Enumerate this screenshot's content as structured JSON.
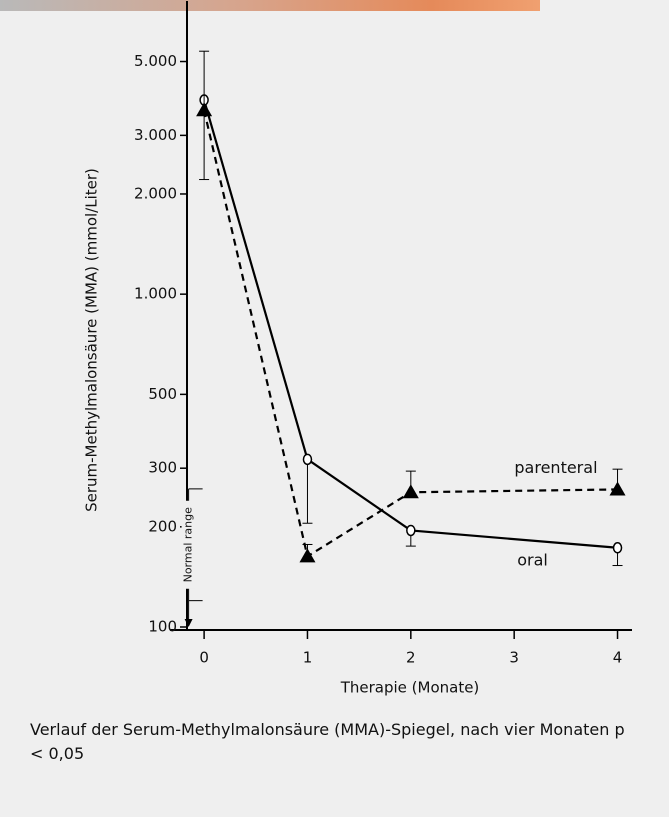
{
  "chart_data": {
    "type": "line",
    "y_label": "Serum-Methylmalonsäure (MMA) (mmol/Liter)",
    "x_label": "Therapie (Monate)",
    "caption": "Verlauf der Serum-Methylmalonsäure (MMA)-Spiegel, nach vier Monaten p < 0,05",
    "normal_range": {
      "label": "Normal range",
      "x": -0.15,
      "values": [
        120,
        260
      ]
    },
    "xlim": [
      -0.33,
      4.14
    ],
    "xticks": [
      0,
      1,
      2,
      3,
      4
    ],
    "ylim": [
      100,
      7600
    ],
    "log_y": true,
    "yticks": [
      100,
      200,
      300,
      500,
      {
        "value": 1000,
        "label": "1.000"
      },
      {
        "value": 2000,
        "label": "2.000"
      },
      {
        "value": 3000,
        "label": "3.000"
      },
      {
        "value": 5000,
        "label": "5.000"
      }
    ],
    "series": [
      {
        "name": "oral",
        "color": "#000000",
        "line": "solid",
        "marker": "circle",
        "error_direction": "down",
        "x": [
          0,
          1,
          2,
          4
        ],
        "values": [
          3830,
          319,
          195,
          173
        ],
        "errors": [
          1620,
          114,
          20,
          20
        ]
      },
      {
        "name": "parenteral",
        "color": "#000000",
        "line": "dashed",
        "marker": "triangle",
        "error_direction": "up",
        "x": [
          0,
          1,
          2,
          4
        ],
        "values": [
          3570,
          163,
          254,
          259
        ],
        "errors": [
          1800,
          14,
          40,
          39
        ]
      }
    ]
  }
}
